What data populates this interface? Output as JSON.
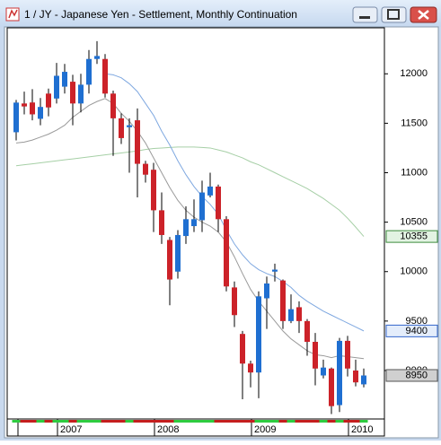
{
  "chart_data": {
    "type": "candlestick",
    "title": "1 / JY - Japanese Yen - Settlement, Monthly Continuation",
    "categories": [
      null,
      null,
      null,
      null,
      null,
      null,
      null,
      null,
      null,
      null,
      null,
      null,
      null,
      null,
      null,
      null,
      null,
      null,
      null,
      null,
      null,
      null,
      null,
      null,
      null,
      null,
      null,
      null,
      null,
      null,
      null,
      null,
      null,
      null,
      null,
      null,
      null,
      null,
      null,
      null,
      null,
      null,
      null,
      null
    ],
    "open": [
      11409,
      11700,
      11710,
      11545,
      11800,
      11750,
      11870,
      11920,
      11700,
      11890,
      12150,
      12150,
      11800,
      11550,
      11460,
      11530,
      11090,
      11030,
      10620,
      10320,
      10000,
      10360,
      10460,
      10520,
      10770,
      10860,
      10530,
      9840,
      9370,
      9070,
      8980,
      9730,
      10000,
      9910,
      9500,
      9640,
      9500,
      9290,
      8950,
      9020,
      8650,
      9300,
      9000,
      8860
    ],
    "high": [
      11736,
      11820,
      11845,
      11755,
      11850,
      12110,
      12100,
      11990,
      12000,
      12240,
      12330,
      12200,
      11830,
      11600,
      11550,
      11650,
      11120,
      11100,
      10800,
      10350,
      10420,
      10660,
      10730,
      10920,
      11000,
      10880,
      10560,
      9900,
      9400,
      9100,
      9800,
      9950,
      10080,
      9920,
      9770,
      9700,
      9520,
      9380,
      9110,
      9030,
      9330,
      9350,
      9110,
      9020
    ],
    "low": [
      11327,
      11590,
      11530,
      11480,
      11570,
      11700,
      11800,
      11480,
      11610,
      11800,
      12100,
      11760,
      11170,
      11290,
      11000,
      10750,
      10900,
      10400,
      10280,
      9660,
      9930,
      10280,
      10400,
      10400,
      10750,
      10400,
      9800,
      9440,
      8710,
      8830,
      8720,
      9420,
      9900,
      9420,
      9480,
      9380,
      9150,
      8850,
      8920,
      8560,
      8580,
      8940,
      8840,
      8830
    ],
    "close": [
      11709,
      11670,
      11590,
      11665,
      11660,
      11980,
      12020,
      11700,
      11890,
      12150,
      12180,
      11800,
      11550,
      11350,
      11480,
      11090,
      10980,
      10620,
      10370,
      9920,
      10370,
      10530,
      10530,
      10800,
      10860,
      10530,
      9850,
      9560,
      9070,
      8980,
      9750,
      9880,
      10020,
      9500,
      9620,
      9500,
      9290,
      9020,
      9030,
      8640,
      9300,
      9020,
      8880,
      8950
    ],
    "up_color": "#1f6fd1",
    "down_color": "#cc2229",
    "lines": [
      {
        "color": "#a6cfa6",
        "values": [
          11070,
          11080,
          11090,
          11100,
          11110,
          11120,
          11130,
          11140,
          11150,
          11160,
          11170,
          11180,
          11190,
          11200,
          11210,
          11220,
          11235,
          11245,
          11250,
          11255,
          11260,
          11260,
          11260,
          11255,
          11250,
          11230,
          11210,
          11180,
          11150,
          11110,
          11080,
          11040,
          11000,
          10960,
          10920,
          10880,
          10840,
          10790,
          10740,
          10680,
          10620,
          10540,
          10450,
          10355
        ]
      },
      {
        "color": "#7fa8e0",
        "values": [
          null,
          null,
          null,
          null,
          null,
          null,
          null,
          null,
          null,
          null,
          null,
          12000,
          11990,
          11960,
          11900,
          11820,
          11700,
          11580,
          11420,
          11280,
          11120,
          10980,
          10860,
          10760,
          10680,
          10580,
          10420,
          10280,
          10170,
          10080,
          10020,
          9980,
          9950,
          9900,
          9840,
          9760,
          9700,
          9650,
          9600,
          9560,
          9520,
          9480,
          9440,
          9400
        ]
      },
      {
        "color": "#9a9a9a",
        "values": [
          11300,
          11310,
          11330,
          11360,
          11390,
          11430,
          11480,
          11560,
          11620,
          11680,
          11720,
          11750,
          11700,
          11600,
          11520,
          11420,
          11300,
          11150,
          11000,
          10850,
          10720,
          10620,
          10550,
          10500,
          10460,
          10400,
          10300,
          10150,
          9980,
          9820,
          9700,
          9600,
          9500,
          9400,
          9320,
          9260,
          9200,
          9160,
          9150,
          9130,
          9150,
          9140,
          9130,
          9120
        ]
      }
    ],
    "ylim": [
      8510,
      12465
    ],
    "yticks": [
      9000,
      9500,
      10000,
      10500,
      11000,
      11500,
      12000
    ],
    "xticks": [
      {
        "value": 5,
        "label": "2007"
      },
      {
        "value": 17,
        "label": "2008"
      },
      {
        "value": 29,
        "label": "2009"
      },
      {
        "value": 41,
        "label": "2010"
      }
    ]
  }
}
